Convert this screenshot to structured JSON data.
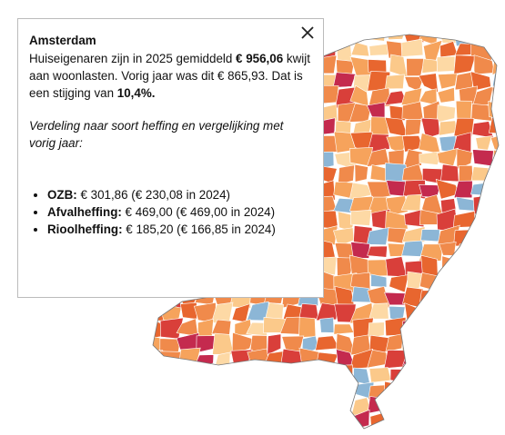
{
  "popup": {
    "title": "Amsterdam",
    "intro": [
      {
        "text": "Huiseigenaren zijn in 2025 gemiddeld "
      },
      {
        "text": "€ 956,06",
        "bold": true
      },
      {
        "text": " kwijt aan woonlasten. Vorig jaar was dit € 865,93. Dat is een stijging van "
      },
      {
        "text": "10,4%.",
        "bold": true
      }
    ],
    "subtitle": "Verdeling naar soort heffing en vergelijking met vorig jaar:",
    "items": [
      {
        "label": "OZB:",
        "text": " € 301,86 (€ 230,08 in 2024)"
      },
      {
        "label": "Afvalheffing:",
        "text": " € 469,00 (€ 469,00 in 2024)"
      },
      {
        "label": "Rioolheffing:",
        "text": " € 185,20 (€ 166,85 in 2024)"
      }
    ]
  }
}
